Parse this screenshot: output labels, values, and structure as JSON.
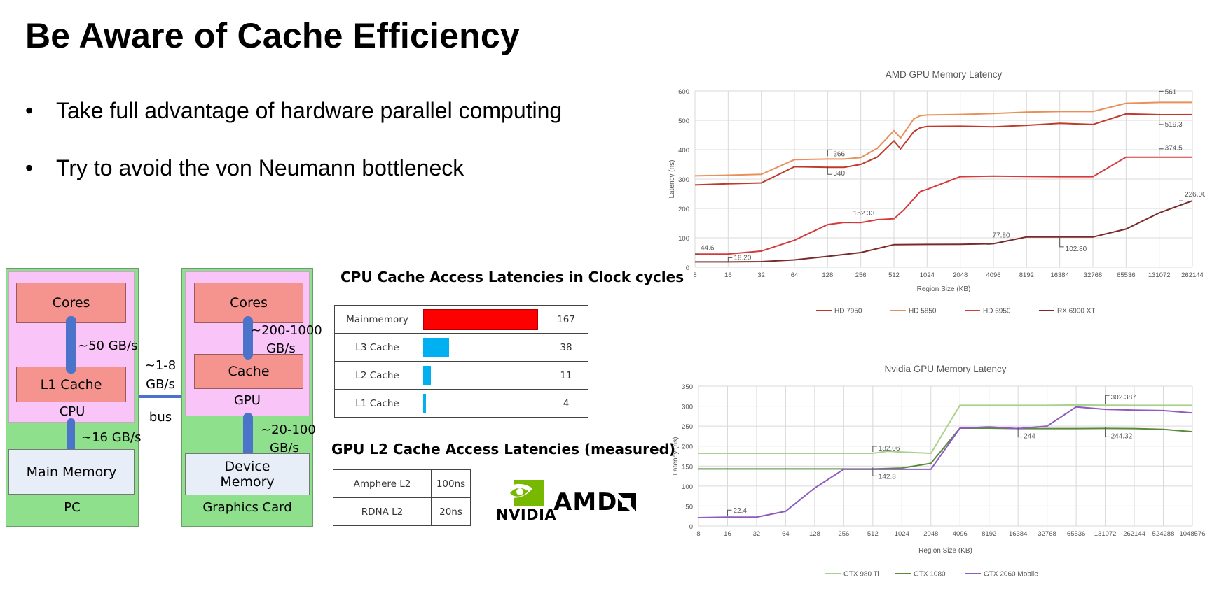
{
  "slide": {
    "title": "Be Aware of Cache Efficiency",
    "bullets": [
      "Take full advantage of hardware parallel computing",
      "Try to avoid the von Neumann bottleneck"
    ]
  },
  "diagram": {
    "pc": {
      "label": "PC",
      "cores": "Cores",
      "l1": "L1 Cache",
      "cpu": "CPU",
      "main_memory": "Main Memory",
      "core_bw": "~50 GB/s",
      "mem_bw": "~16 GB/s"
    },
    "bus": {
      "bw_line1": "~1-8",
      "bw_line2": "GB/s",
      "label": "bus"
    },
    "gpu": {
      "label": "Graphics Card",
      "cores": "Cores",
      "cache": "Cache",
      "gpu": "GPU",
      "device_memory_line1": "Device",
      "device_memory_line2": "Memory",
      "core_bw_line1": "~200-1000",
      "core_bw_line2": "GB/s",
      "mem_bw_line1": "~20-100",
      "mem_bw_line2": "GB/s"
    }
  },
  "cpu_latency": {
    "title": "CPU  Cache Access Latencies in Clock cycles",
    "rows": [
      {
        "label": "Mainmemory",
        "value": "167",
        "color": "#ff0000"
      },
      {
        "label": "L3 Cache",
        "value": "38",
        "color": "#00b0f0"
      },
      {
        "label": "L2 Cache",
        "value": "11",
        "color": "#00b0f0"
      },
      {
        "label": "L1 Cache",
        "value": "4",
        "color": "#00b0f0"
      }
    ]
  },
  "gpu_latency": {
    "title": "GPU L2 Cache Access Latencies (measured)",
    "rows": [
      {
        "label": "Amphere L2",
        "value": "100ns"
      },
      {
        "label": "RDNA L2",
        "value": "20ns"
      }
    ]
  },
  "logos": {
    "nvidia": "NVIDIA",
    "amd": "AMD"
  },
  "chart_data": [
    {
      "type": "line",
      "title": "AMD GPU Memory Latency",
      "xlabel": "Region Size (KB)",
      "ylabel": "Latency (ns)",
      "ylim": [
        0,
        600
      ],
      "yticks": [
        0,
        100,
        200,
        300,
        400,
        500,
        600
      ],
      "categories": [
        "8",
        "16",
        "32",
        "64",
        "128",
        "256",
        "512",
        "1024",
        "2048",
        "4096",
        "8192",
        "16384",
        "32768",
        "65536",
        "131072",
        "262144"
      ],
      "grid": true,
      "legend": "bottom",
      "series": [
        {
          "name": "HD 7950",
          "color": "#c0392b",
          "points": [
            [
              0,
              280
            ],
            [
              1,
              284
            ],
            [
              2,
              287
            ],
            [
              3,
              342
            ],
            [
              4,
              340
            ],
            [
              4.5,
              340
            ],
            [
              5,
              350
            ],
            [
              5.5,
              375
            ],
            [
              6,
              430
            ],
            [
              6.2,
              403
            ],
            [
              6.6,
              462
            ],
            [
              6.8,
              475
            ],
            [
              7,
              479
            ],
            [
              8,
              480
            ],
            [
              9,
              478
            ],
            [
              10,
              483
            ],
            [
              11,
              490
            ],
            [
              12,
              486
            ],
            [
              13,
              522
            ],
            [
              14,
              519
            ],
            [
              15,
              519.3
            ]
          ]
        },
        {
          "name": "HD 5850",
          "color": "#e8905a",
          "points": [
            [
              0,
              311
            ],
            [
              1,
              313
            ],
            [
              2,
              316
            ],
            [
              3,
              366
            ],
            [
              4,
              368
            ],
            [
              4.5,
              368
            ],
            [
              5,
              373
            ],
            [
              5.5,
              405
            ],
            [
              6,
              465
            ],
            [
              6.2,
              440
            ],
            [
              6.6,
              505
            ],
            [
              6.8,
              516
            ],
            [
              7,
              518
            ],
            [
              8,
              520
            ],
            [
              9,
              523
            ],
            [
              10,
              528
            ],
            [
              11,
              530
            ],
            [
              12,
              530
            ],
            [
              13,
              558
            ],
            [
              14,
              561
            ],
            [
              15,
              561
            ]
          ]
        },
        {
          "name": "HD 6950",
          "color": "#d63a3a",
          "points": [
            [
              0,
              44.6
            ],
            [
              1,
              45
            ],
            [
              2,
              55
            ],
            [
              3,
              92
            ],
            [
              4,
              145
            ],
            [
              4.5,
              152.33
            ],
            [
              5,
              152
            ],
            [
              5.5,
              162
            ],
            [
              6,
              165
            ],
            [
              6.3,
              195
            ],
            [
              6.8,
              258
            ],
            [
              7,
              265
            ],
            [
              8,
              308
            ],
            [
              9,
              310
            ],
            [
              10,
              309
            ],
            [
              11,
              308
            ],
            [
              12,
              308
            ],
            [
              13,
              374.5
            ],
            [
              14,
              374.5
            ],
            [
              15,
              374.5
            ]
          ]
        },
        {
          "name": "RX 6900 XT",
          "color": "#7a2a2a",
          "points": [
            [
              0,
              18.2
            ],
            [
              1,
              18.2
            ],
            [
              2,
              19
            ],
            [
              3,
              25
            ],
            [
              4,
              37
            ],
            [
              5,
              50
            ],
            [
              6,
              77
            ],
            [
              7,
              77.5
            ],
            [
              8,
              77.8
            ],
            [
              9,
              80
            ],
            [
              10,
              102.8
            ],
            [
              11,
              102.8
            ],
            [
              12,
              102.8
            ],
            [
              13,
              130
            ],
            [
              14,
              185
            ],
            [
              15,
              226
            ]
          ]
        }
      ],
      "annotations": [
        "561",
        "519.3",
        "374.5",
        "366",
        "340",
        "152.33",
        "44.6",
        "18.20",
        "77.80",
        "102.80",
        "226.00"
      ]
    },
    {
      "type": "line",
      "title": "Nvidia GPU Memory Latency",
      "xlabel": "Region Size (KB)",
      "ylabel": "Latency (ns)",
      "ylim": [
        0,
        350
      ],
      "yticks": [
        0,
        50,
        100,
        150,
        200,
        250,
        300,
        350
      ],
      "categories": [
        "8",
        "16",
        "32",
        "64",
        "128",
        "256",
        "512",
        "1024",
        "2048",
        "4096",
        "8192",
        "16384",
        "32768",
        "65536",
        "131072",
        "262144",
        "524288",
        "1048576"
      ],
      "grid": true,
      "legend": "bottom",
      "series": [
        {
          "name": "GTX 980 Ti",
          "color": "#a9d18e",
          "points": [
            [
              0,
              182
            ],
            [
              1,
              182
            ],
            [
              2,
              182
            ],
            [
              3,
              182
            ],
            [
              4,
              182
            ],
            [
              5,
              182.06
            ],
            [
              6,
              182.06
            ],
            [
              6.5,
              187
            ],
            [
              7,
              185
            ],
            [
              8,
              182
            ],
            [
              9,
              302
            ],
            [
              10,
              302
            ],
            [
              11,
              302
            ],
            [
              12,
              302
            ],
            [
              13,
              303
            ],
            [
              14,
              302.387
            ],
            [
              15,
              302
            ],
            [
              16,
              302
            ],
            [
              17,
              302
            ]
          ]
        },
        {
          "name": "GTX 1080",
          "color": "#5b8a3c",
          "points": [
            [
              0,
              142.8
            ],
            [
              1,
              142.8
            ],
            [
              2,
              142.8
            ],
            [
              3,
              142.8
            ],
            [
              4,
              142.8
            ],
            [
              5,
              142.8
            ],
            [
              6,
              142.8
            ],
            [
              7,
              145
            ],
            [
              8,
              157
            ],
            [
              9,
              245
            ],
            [
              10,
              245
            ],
            [
              11,
              244
            ],
            [
              12,
              244
            ],
            [
              13,
              244
            ],
            [
              14,
              244.32
            ],
            [
              15,
              244
            ],
            [
              16,
              242
            ],
            [
              17,
              236
            ]
          ]
        },
        {
          "name": "GTX 2060 Mobile",
          "color": "#8e5cc0",
          "points": [
            [
              0,
              21
            ],
            [
              1,
              22.4
            ],
            [
              2,
              22.4
            ],
            [
              3,
              37
            ],
            [
              4,
              95
            ],
            [
              5,
              142
            ],
            [
              6,
              142
            ],
            [
              7,
              142
            ],
            [
              8,
              142
            ],
            [
              9,
              245
            ],
            [
              10,
              248
            ],
            [
              11,
              244
            ],
            [
              12,
              250
            ],
            [
              13,
              298
            ],
            [
              14,
              292
            ],
            [
              15,
              290
            ],
            [
              16,
              289
            ],
            [
              17,
              283
            ]
          ]
        }
      ],
      "annotations": [
        "302.387",
        "244",
        "244.32",
        "182.06",
        "142.8",
        "22.4"
      ]
    }
  ]
}
